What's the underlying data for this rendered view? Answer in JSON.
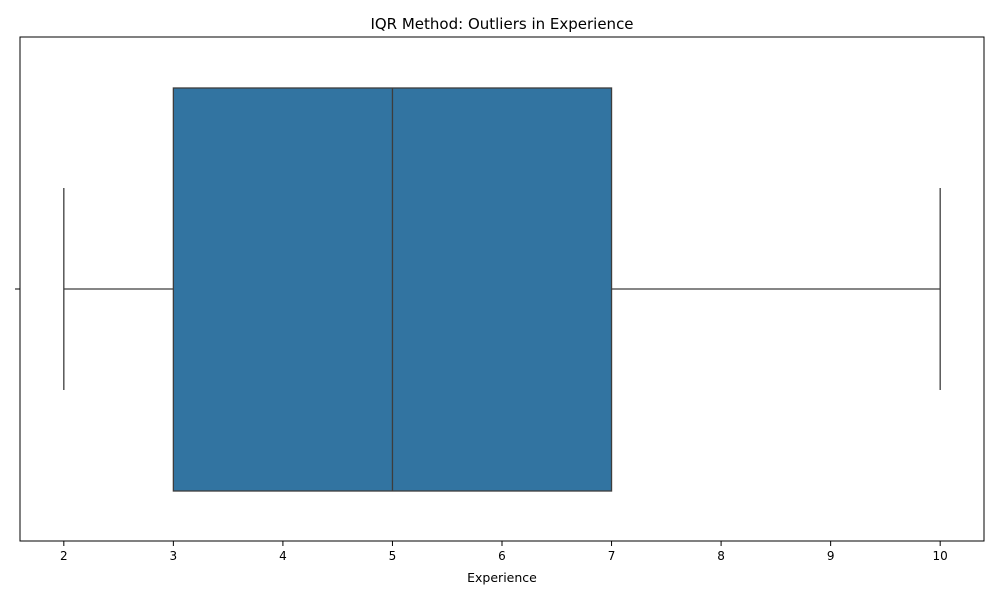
{
  "chart_data": {
    "type": "box",
    "title": "IQR Method: Outliers in Experience",
    "xlabel": "Experience",
    "ylabel": "",
    "xlim": [
      1.6,
      10.4
    ],
    "xticks": [
      "2",
      "3",
      "4",
      "5",
      "6",
      "7",
      "8",
      "9",
      "10"
    ],
    "orientation": "horizontal",
    "grid": false,
    "box": {
      "whisker_low": 2,
      "q1": 3,
      "median": 5,
      "q3": 7,
      "whisker_high": 10,
      "outliers": []
    },
    "colors": {
      "box_fill": "#3274a1",
      "line": "#3d3d3d",
      "axis": "#000000"
    }
  }
}
